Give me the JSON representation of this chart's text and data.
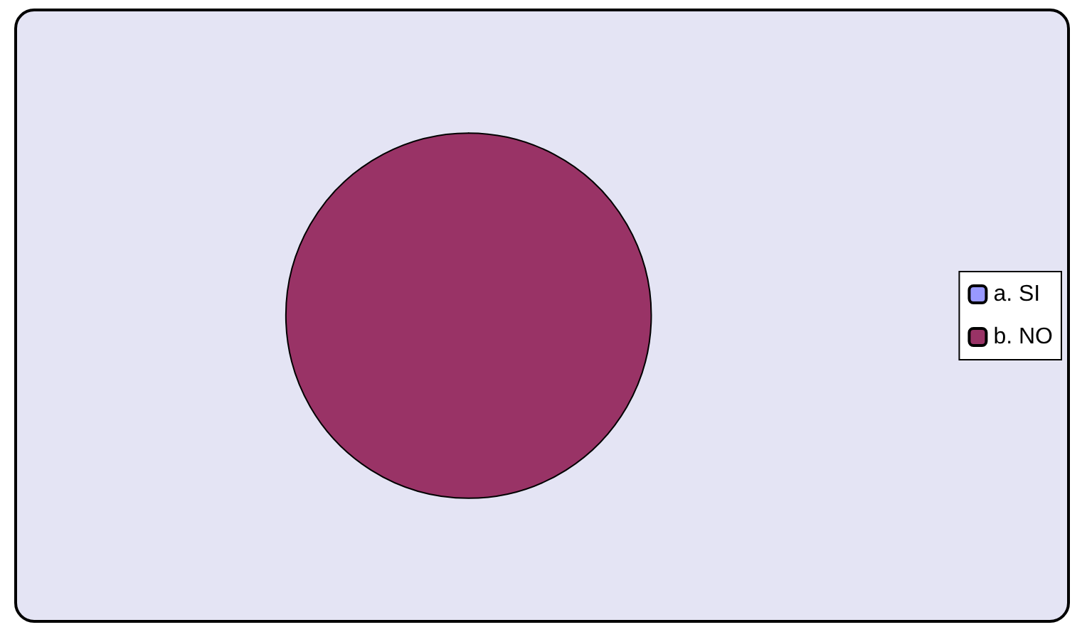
{
  "chart_data": {
    "type": "pie",
    "categories": [
      "a. SI",
      "b. NO"
    ],
    "values": [
      0,
      100
    ],
    "colors": [
      "#9999ff",
      "#993366"
    ],
    "legend": "right"
  }
}
